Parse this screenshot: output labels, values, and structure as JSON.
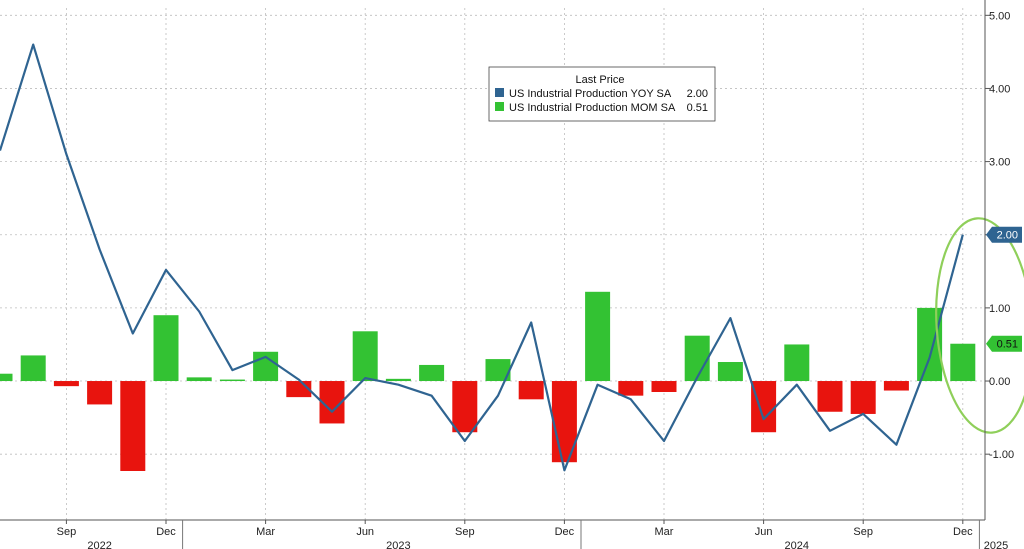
{
  "chart_data": {
    "type": "bar",
    "legend": {
      "title": "Last Price",
      "entries": [
        {
          "label": "US Industrial Production YOY SA",
          "value": "2.00",
          "color": "#2f6491"
        },
        {
          "label": "US Industrial Production MOM SA",
          "value": "0.51",
          "color": "#33c233"
        }
      ]
    },
    "x": [
      "2022-07",
      "2022-08",
      "2022-09",
      "2022-10",
      "2022-11",
      "2022-12",
      "2023-01",
      "2023-02",
      "2023-03",
      "2023-04",
      "2023-05",
      "2023-06",
      "2023-07",
      "2023-08",
      "2023-09",
      "2023-10",
      "2023-11",
      "2023-12",
      "2024-01",
      "2024-02",
      "2024-03",
      "2024-04",
      "2024-05",
      "2024-06",
      "2024-07",
      "2024-08",
      "2024-09",
      "2024-10",
      "2024-11",
      "2024-12",
      "2025-01"
    ],
    "series": [
      {
        "name": "US Industrial Production YOY SA",
        "type": "line",
        "color": "#2f6491",
        "values": [
          3.15,
          4.6,
          3.1,
          1.8,
          0.65,
          1.52,
          0.95,
          0.15,
          0.33,
          0.02,
          -0.42,
          0.04,
          -0.05,
          -0.2,
          -0.82,
          -0.2,
          0.8,
          -1.22,
          -0.05,
          -0.25,
          -0.82,
          0.05,
          0.86,
          -0.52,
          -0.05,
          -0.68,
          -0.45,
          -0.87,
          0.32,
          2.0,
          null
        ]
      },
      {
        "name": "US Industrial Production MOM SA",
        "type": "bar",
        "values": [
          0.1,
          0.35,
          -0.07,
          -0.32,
          -1.23,
          0.9,
          0.05,
          0.02,
          0.4,
          -0.22,
          -0.58,
          0.68,
          0.03,
          0.22,
          -0.7,
          0.3,
          -0.25,
          -1.11,
          1.22,
          -0.2,
          -0.15,
          0.62,
          0.26,
          -0.7,
          0.5,
          -0.42,
          -0.45,
          -0.13,
          1.0,
          0.51,
          null
        ],
        "positive_color": "#33c233",
        "negative_color": "#e8140e"
      }
    ],
    "x_tick_labels": [
      {
        "label": "Sep",
        "at": "2022-09"
      },
      {
        "label": "Dec",
        "at": "2022-12"
      },
      {
        "label": "Mar",
        "at": "2023-03"
      },
      {
        "label": "Jun",
        "at": "2023-06"
      },
      {
        "label": "Sep",
        "at": "2023-09"
      },
      {
        "label": "Dec",
        "at": "2023-12"
      },
      {
        "label": "Mar",
        "at": "2024-03"
      },
      {
        "label": "Jun",
        "at": "2024-06"
      },
      {
        "label": "Sep",
        "at": "2024-09"
      },
      {
        "label": "Dec",
        "at": "2024-12"
      }
    ],
    "year_labels": [
      {
        "label": "2022",
        "at": "2022-10"
      },
      {
        "label": "2023",
        "at": "2023-07"
      },
      {
        "label": "2024",
        "at": "2024-07"
      },
      {
        "label": "2025",
        "at": "2025-01"
      }
    ],
    "y_ticks": [
      "-1.00",
      "0.00",
      "1.00",
      "2.00",
      "3.00",
      "4.00",
      "5.00"
    ],
    "ylim": [
      -1.9,
      5.1
    ],
    "grid": true,
    "legend_placement": "top-center",
    "last_value_tags": [
      {
        "label": "2.00",
        "value": 2.0,
        "color": "#2f6491"
      },
      {
        "label": "0.51",
        "value": 0.51,
        "color": "#33c233"
      }
    ],
    "annotation": {
      "type": "ellipse",
      "color": "#8fcf5a",
      "around": [
        "2024-12",
        "2025-01"
      ]
    }
  }
}
